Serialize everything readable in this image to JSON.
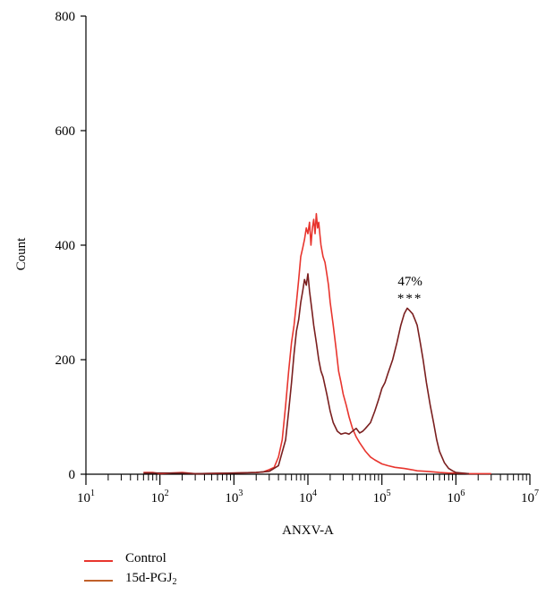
{
  "chart_data": {
    "type": "line",
    "xlabel": "ANXV-A",
    "ylabel": "Count",
    "xscale": "log",
    "xlim": [
      10,
      10000000
    ],
    "ylim": [
      0,
      800
    ],
    "x_ticks": [
      {
        "base": "10",
        "exp": "1",
        "value": 10
      },
      {
        "base": "10",
        "exp": "2",
        "value": 100
      },
      {
        "base": "10",
        "exp": "3",
        "value": 1000
      },
      {
        "base": "10",
        "exp": "4",
        "value": 10000
      },
      {
        "base": "10",
        "exp": "5",
        "value": 100000
      },
      {
        "base": "10",
        "exp": "6",
        "value": 1000000
      },
      {
        "base": "10",
        "exp": "7",
        "value": 10000000
      }
    ],
    "y_ticks": [
      "0",
      "200",
      "400",
      "600",
      "800"
    ],
    "annotations": [
      {
        "text": "47%",
        "x": 300000,
        "y": 330
      },
      {
        "text": "***",
        "x": 300000,
        "y": 300
      }
    ],
    "legend_position": "bottom-left",
    "series": [
      {
        "name": "Control",
        "color": "#e8352e",
        "x": [
          60,
          80,
          100,
          200,
          300,
          1000,
          2000,
          2500,
          3000,
          3500,
          4000,
          4500,
          5000,
          5500,
          6000,
          6500,
          7000,
          7500,
          8000,
          8500,
          9000,
          9500,
          10000,
          10500,
          11000,
          11500,
          12000,
          12500,
          13000,
          13500,
          14000,
          14500,
          15000,
          16000,
          17000,
          18000,
          19000,
          20000,
          22000,
          24000,
          26000,
          28000,
          30000,
          33000,
          36000,
          40000,
          45000,
          50000,
          60000,
          70000,
          80000,
          100000,
          120000,
          150000,
          200000,
          250000,
          300000,
          400000,
          500000,
          600000,
          800000,
          1000000,
          1500000,
          2000000,
          3000000
        ],
        "values": [
          3,
          3,
          1,
          3,
          1,
          2,
          3,
          4,
          8,
          12,
          30,
          60,
          120,
          180,
          230,
          260,
          300,
          340,
          380,
          395,
          410,
          430,
          420,
          440,
          400,
          430,
          445,
          420,
          455,
          430,
          440,
          420,
          400,
          380,
          370,
          350,
          330,
          300,
          260,
          220,
          180,
          160,
          140,
          120,
          100,
          80,
          65,
          55,
          40,
          30,
          25,
          18,
          15,
          12,
          10,
          8,
          6,
          5,
          4,
          3,
          2,
          2,
          1,
          1,
          1
        ]
      },
      {
        "name": "15d-PGJ2",
        "color": "#7a1f1f",
        "x": [
          60,
          100,
          200,
          300,
          1000,
          2000,
          3000,
          4000,
          5000,
          5500,
          6000,
          6500,
          7000,
          7500,
          8000,
          8500,
          9000,
          9500,
          10000,
          10500,
          11000,
          11500,
          12000,
          13000,
          14000,
          15000,
          16000,
          18000,
          20000,
          22000,
          25000,
          28000,
          32000,
          36000,
          40000,
          45000,
          50000,
          55000,
          60000,
          70000,
          80000,
          90000,
          100000,
          110000,
          120000,
          140000,
          160000,
          180000,
          200000,
          220000,
          240000,
          260000,
          280000,
          300000,
          330000,
          360000,
          400000,
          450000,
          500000,
          550000,
          600000,
          700000,
          800000,
          900000,
          1000000,
          1200000,
          1500000
        ],
        "values": [
          2,
          2,
          2,
          1,
          2,
          3,
          5,
          15,
          60,
          110,
          160,
          210,
          250,
          270,
          300,
          320,
          340,
          330,
          350,
          320,
          300,
          280,
          260,
          230,
          200,
          180,
          170,
          140,
          110,
          90,
          75,
          70,
          72,
          70,
          75,
          80,
          72,
          75,
          80,
          90,
          110,
          130,
          150,
          160,
          175,
          200,
          230,
          260,
          280,
          290,
          285,
          280,
          270,
          260,
          230,
          200,
          160,
          120,
          90,
          60,
          40,
          20,
          10,
          6,
          3,
          2,
          1
        ]
      }
    ]
  },
  "legend": {
    "items": [
      {
        "label": "Control",
        "color": "#e8352e"
      },
      {
        "label_main": "15d-PGJ",
        "label_sub": "2",
        "color": "#c0612a"
      }
    ]
  }
}
